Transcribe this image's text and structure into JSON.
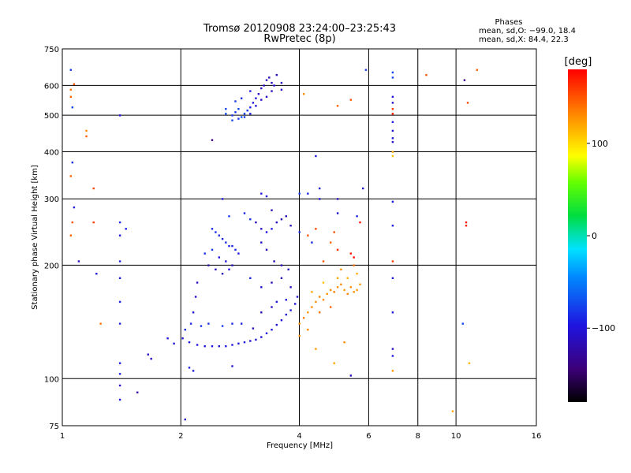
{
  "chart_data": {
    "type": "scatter",
    "title": "Tromsø 20120908 23:24:00–23:25:43",
    "subtitle": "RwPretec (8p)",
    "stats": {
      "heading": "Phases",
      "line1": "mean, sd,O: −99.0, 18.4",
      "line2": "mean, sd,X:  84.4, 22.3"
    },
    "xlabel": "Frequency [MHz]",
    "ylabel": "Stationary phase Virtual Height [km]",
    "x_scale": "log",
    "y_scale": "log",
    "xlim": [
      1,
      16
    ],
    "ylim": [
      75,
      750
    ],
    "x_ticks": [
      1,
      2,
      4,
      6,
      8,
      10,
      16
    ],
    "x_tick_labels": [
      "1",
      "2",
      "4",
      "6",
      "8",
      "10",
      "16"
    ],
    "y_ticks": [
      75,
      100,
      200,
      300,
      400,
      500,
      600,
      750
    ],
    "y_tick_labels": [
      "75",
      "100",
      "200",
      "300",
      "400",
      "500",
      "600",
      "750"
    ],
    "grid": true,
    "colorbar": {
      "label": "[deg]",
      "range": [
        -180,
        180
      ],
      "ticks": [
        100,
        0,
        -100
      ],
      "tick_labels": [
        "100",
        "0",
        "−100"
      ]
    },
    "series": [
      {
        "points": [
          [
            2.02,
            128,
            -95
          ],
          [
            2.1,
            125,
            -98
          ],
          [
            2.2,
            123,
            -100
          ],
          [
            2.3,
            122,
            -102
          ],
          [
            2.4,
            122,
            -98
          ],
          [
            2.5,
            122,
            -100
          ],
          [
            2.6,
            122,
            -96
          ],
          [
            2.7,
            123,
            -100
          ],
          [
            2.8,
            124,
            -102
          ],
          [
            2.9,
            125,
            -98
          ],
          [
            3.0,
            126,
            -100
          ],
          [
            3.1,
            127,
            -104
          ],
          [
            3.2,
            129,
            -100
          ],
          [
            3.3,
            132,
            -102
          ],
          [
            3.4,
            135,
            -98
          ],
          [
            3.5,
            139,
            -100
          ],
          [
            3.6,
            143,
            -104
          ],
          [
            3.7,
            148,
            -100
          ],
          [
            3.8,
            152,
            -98
          ],
          [
            3.9,
            158,
            -102
          ],
          [
            3.95,
            165,
            -100
          ],
          [
            1.85,
            128,
            -98
          ],
          [
            1.92,
            124,
            -100
          ],
          [
            2.05,
            135,
            -90
          ],
          [
            2.12,
            140,
            -88
          ],
          [
            2.15,
            150,
            -100
          ],
          [
            2.18,
            165,
            -105
          ],
          [
            2.2,
            180,
            -110
          ],
          [
            2.25,
            138,
            -85
          ],
          [
            2.35,
            140,
            -85
          ],
          [
            2.55,
            138,
            -80
          ],
          [
            2.7,
            140,
            -88
          ],
          [
            2.85,
            140,
            -92
          ],
          [
            3.05,
            136,
            -110
          ],
          [
            3.2,
            150,
            -115
          ],
          [
            3.4,
            155,
            -110
          ],
          [
            3.5,
            160,
            -100
          ],
          [
            3.7,
            162,
            -100
          ],
          [
            2.1,
            107,
            -90
          ],
          [
            2.15,
            105,
            -95
          ],
          [
            2.7,
            108,
            -102
          ],
          [
            1.65,
            116,
            -110
          ],
          [
            1.68,
            113,
            -108
          ],
          [
            1.55,
            92,
            -125
          ],
          [
            1.4,
            110,
            -95
          ],
          [
            1.4,
            103,
            -90
          ],
          [
            1.4,
            96,
            -105
          ],
          [
            1.4,
            88,
            -95
          ],
          [
            2.05,
            78,
            -110
          ],
          [
            2.4,
            250,
            -90
          ],
          [
            2.45,
            245,
            -85
          ],
          [
            2.5,
            240,
            -88
          ],
          [
            2.55,
            235,
            -90
          ],
          [
            2.6,
            230,
            -85
          ],
          [
            2.65,
            225,
            -92
          ],
          [
            2.7,
            225,
            -90
          ],
          [
            2.75,
            220,
            -88
          ],
          [
            2.8,
            215,
            -95
          ],
          [
            2.4,
            220,
            -80
          ],
          [
            2.5,
            210,
            -100
          ],
          [
            2.6,
            205,
            -95
          ],
          [
            2.7,
            200,
            -110
          ],
          [
            2.3,
            215,
            -85
          ],
          [
            2.35,
            200,
            -120
          ],
          [
            2.45,
            195,
            -110
          ],
          [
            2.55,
            190,
            -115
          ],
          [
            2.65,
            195,
            -100
          ],
          [
            2.9,
            275,
            -90
          ],
          [
            3.0,
            265,
            -85
          ],
          [
            3.1,
            260,
            -110
          ],
          [
            3.2,
            250,
            -105
          ],
          [
            3.3,
            245,
            -100
          ],
          [
            3.4,
            250,
            -95
          ],
          [
            3.5,
            260,
            -110
          ],
          [
            3.6,
            265,
            -120
          ],
          [
            3.7,
            270,
            -115
          ],
          [
            3.8,
            255,
            -110
          ],
          [
            3.2,
            230,
            -105
          ],
          [
            3.3,
            220,
            -115
          ],
          [
            3.45,
            205,
            -120
          ],
          [
            3.6,
            200,
            -110
          ],
          [
            3.75,
            195,
            -115
          ],
          [
            3.0,
            185,
            -90
          ],
          [
            3.2,
            175,
            -100
          ],
          [
            3.4,
            180,
            -110
          ],
          [
            3.6,
            185,
            -115
          ],
          [
            3.8,
            175,
            -110
          ],
          [
            3.2,
            310,
            -95
          ],
          [
            3.3,
            305,
            -100
          ],
          [
            3.4,
            280,
            -110
          ],
          [
            2.55,
            300,
            -95
          ],
          [
            2.65,
            270,
            -80
          ],
          [
            2.7,
            500,
            -80
          ],
          [
            2.75,
            510,
            -85
          ],
          [
            2.8,
            520,
            -75
          ],
          [
            2.85,
            495,
            -70
          ],
          [
            2.9,
            505,
            -78
          ],
          [
            2.95,
            515,
            -85
          ],
          [
            3.0,
            525,
            -90
          ],
          [
            3.05,
            540,
            -95
          ],
          [
            3.1,
            555,
            -100
          ],
          [
            3.15,
            570,
            -105
          ],
          [
            3.2,
            590,
            -110
          ],
          [
            3.25,
            600,
            -115
          ],
          [
            3.3,
            620,
            -112
          ],
          [
            3.35,
            630,
            -118
          ],
          [
            3.4,
            610,
            -110
          ],
          [
            3.45,
            600,
            -105
          ],
          [
            3.2,
            550,
            -108
          ],
          [
            3.3,
            560,
            -112
          ],
          [
            3.4,
            580,
            -110
          ],
          [
            3.1,
            530,
            -100
          ],
          [
            3.0,
            505,
            -95
          ],
          [
            2.9,
            495,
            -85
          ],
          [
            2.8,
            490,
            -80
          ],
          [
            2.7,
            485,
            -75
          ],
          [
            3.5,
            640,
            -115
          ],
          [
            3.6,
            610,
            -112
          ],
          [
            2.6,
            505,
            -70
          ],
          [
            2.6,
            520,
            -75
          ],
          [
            2.75,
            545,
            -80
          ],
          [
            2.85,
            555,
            -88
          ],
          [
            3.0,
            580,
            -95
          ],
          [
            3.6,
            585,
            -108
          ],
          [
            2.4,
            430,
            -140
          ],
          [
            4.0,
            140,
            130
          ],
          [
            4.1,
            145,
            135
          ],
          [
            4.2,
            150,
            125
          ],
          [
            4.3,
            155,
            130
          ],
          [
            4.4,
            160,
            128
          ],
          [
            4.5,
            165,
            132
          ],
          [
            4.6,
            162,
            130
          ],
          [
            4.7,
            168,
            125
          ],
          [
            4.8,
            172,
            130
          ],
          [
            4.9,
            170,
            135
          ],
          [
            5.0,
            175,
            128
          ],
          [
            5.1,
            178,
            130
          ],
          [
            5.2,
            172,
            125
          ],
          [
            5.3,
            168,
            132
          ],
          [
            5.4,
            175,
            130
          ],
          [
            5.5,
            170,
            128
          ],
          [
            5.6,
            172,
            126
          ],
          [
            5.7,
            178,
            124
          ],
          [
            4.5,
            150,
            140
          ],
          [
            4.8,
            155,
            145
          ],
          [
            5.0,
            185,
            120
          ],
          [
            5.3,
            185,
            115
          ],
          [
            5.6,
            190,
            118
          ],
          [
            4.3,
            170,
            120
          ],
          [
            4.6,
            180,
            110
          ],
          [
            4.2,
            135,
            130
          ],
          [
            4.0,
            130,
            125
          ],
          [
            5.1,
            195,
            130
          ],
          [
            5.5,
            200,
            140
          ],
          [
            4.8,
            230,
            145
          ],
          [
            5.0,
            220,
            165
          ],
          [
            4.6,
            205,
            150
          ],
          [
            4.9,
            245,
            150
          ],
          [
            5.4,
            215,
            170
          ],
          [
            5.5,
            210,
            175
          ],
          [
            4.4,
            120,
            125
          ],
          [
            5.2,
            125,
            130
          ],
          [
            4.9,
            110,
            120
          ],
          [
            4.5,
            300,
            -100
          ],
          [
            4.5,
            320,
            -98
          ],
          [
            4.4,
            390,
            -95
          ],
          [
            4.2,
            310,
            -90
          ],
          [
            4.0,
            310,
            -80
          ],
          [
            5.0,
            275,
            -105
          ],
          [
            5.0,
            300,
            -110
          ],
          [
            5.8,
            320,
            -105
          ],
          [
            5.6,
            270,
            -90
          ],
          [
            5.4,
            102,
            -112
          ],
          [
            4.1,
            570,
            130
          ],
          [
            5.0,
            530,
            145
          ],
          [
            5.4,
            550,
            150
          ],
          [
            5.9,
            660,
            -80
          ],
          [
            4.0,
            245,
            -85
          ],
          [
            4.3,
            230,
            -90
          ],
          [
            4.2,
            240,
            150
          ],
          [
            4.4,
            250,
            155
          ],
          [
            5.7,
            260,
            175
          ],
          [
            6.9,
            650,
            -75
          ],
          [
            6.9,
            630,
            -75
          ],
          [
            6.9,
            560,
            -100
          ],
          [
            6.9,
            540,
            -105
          ],
          [
            6.9,
            520,
            160
          ],
          [
            6.9,
            505,
            170
          ],
          [
            6.9,
            480,
            -95
          ],
          [
            6.9,
            455,
            -105
          ],
          [
            6.9,
            435,
            -100
          ],
          [
            6.9,
            425,
            -102
          ],
          [
            6.9,
            400,
            120
          ],
          [
            6.9,
            390,
            110
          ],
          [
            6.9,
            295,
            -95
          ],
          [
            6.9,
            255,
            -100
          ],
          [
            6.9,
            205,
            160
          ],
          [
            6.9,
            185,
            -100
          ],
          [
            6.9,
            150,
            -100
          ],
          [
            6.9,
            120,
            -110
          ],
          [
            6.9,
            115,
            -95
          ],
          [
            6.9,
            105,
            125
          ],
          [
            8.4,
            640,
            150
          ],
          [
            9.8,
            82,
            120
          ],
          [
            10.5,
            620,
            -140
          ],
          [
            10.7,
            540,
            155
          ],
          [
            10.8,
            110,
            115
          ],
          [
            10.6,
            260,
            175
          ],
          [
            10.6,
            255,
            170
          ],
          [
            10.4,
            140,
            -75
          ],
          [
            11.3,
            660,
            145
          ],
          [
            1.05,
            660,
            -80
          ],
          [
            1.06,
            525,
            -75
          ],
          [
            1.07,
            605,
            150
          ],
          [
            1.05,
            585,
            140
          ],
          [
            1.05,
            560,
            145
          ],
          [
            1.06,
            375,
            -90
          ],
          [
            1.07,
            285,
            -95
          ],
          [
            1.05,
            345,
            145
          ],
          [
            1.06,
            260,
            150
          ],
          [
            1.05,
            240,
            145
          ],
          [
            1.1,
            205,
            -110
          ],
          [
            1.15,
            455,
            130
          ],
          [
            1.15,
            440,
            145
          ],
          [
            1.2,
            320,
            155
          ],
          [
            1.2,
            260,
            160
          ],
          [
            1.22,
            190,
            -100
          ],
          [
            1.25,
            140,
            140
          ],
          [
            1.4,
            500,
            -100
          ],
          [
            1.4,
            260,
            -85
          ],
          [
            1.45,
            250,
            -90
          ],
          [
            1.4,
            240,
            -95
          ],
          [
            1.4,
            205,
            -88
          ],
          [
            1.4,
            185,
            -95
          ],
          [
            1.4,
            160,
            -92
          ],
          [
            1.4,
            140,
            -90
          ]
        ]
      }
    ]
  }
}
